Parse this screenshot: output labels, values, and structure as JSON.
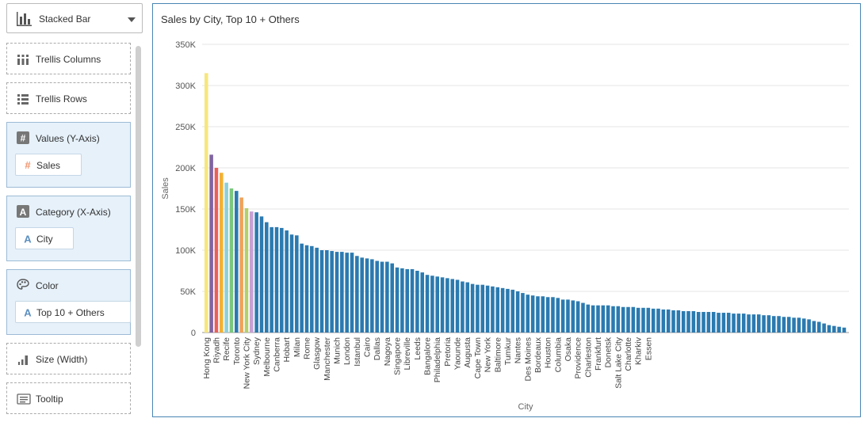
{
  "panel": {
    "chart_type": "Stacked Bar",
    "trellis_columns": "Trellis Columns",
    "trellis_rows": "Trellis Rows",
    "values_axis": {
      "label": "Values (Y-Axis)",
      "item": "Sales"
    },
    "category_axis": {
      "label": "Category (X-Axis)",
      "item": "City"
    },
    "color": {
      "label": "Color",
      "item": "Top 10 + Others"
    },
    "size": "Size (Width)",
    "tooltip": "Tooltip"
  },
  "colors": {
    "accent": "#2e7bb4",
    "panel_fill": "#e6f1fa",
    "hash_icon": "#f0936d",
    "text_icon": "#5b8fc0"
  },
  "chart_data": {
    "type": "bar",
    "title": "Sales by City, Top 10 + Others",
    "xlabel": "City",
    "ylabel": "Sales",
    "ylim": [
      0,
      350000
    ],
    "yticks": [
      0,
      50000,
      100000,
      150000,
      200000,
      250000,
      300000,
      350000
    ],
    "ytick_labels": [
      "0",
      "50K",
      "100K",
      "150K",
      "200K",
      "250K",
      "300K",
      "350K"
    ],
    "grid": true,
    "shown_labels": [
      "Hong Kong",
      "Riyadh",
      "Recife",
      "Toronto",
      "New York City",
      "Sydney",
      "Melbourne",
      "Canberra",
      "Hobart",
      "Milan",
      "Rome",
      "Glasgow",
      "Manchester",
      "Munich",
      "London",
      "Istanbul",
      "Cairo",
      "Dallas",
      "Nagoya",
      "Singapore",
      "Libreville",
      "Leeds",
      "Bangalore",
      "Philadelphia",
      "Pretoria",
      "Yaounde",
      "Augusta",
      "Cape Town",
      "New York",
      "Baltimore",
      "Tumkur",
      "Nantes",
      "Des Moines",
      "Bordeaux",
      "Houston",
      "Columbia",
      "Osaka",
      "Providence",
      "Charleston",
      "Frankfurt",
      "Donetsk",
      "Salt Lake City",
      "Charlotte",
      "Kharkiv",
      "Essen"
    ],
    "label_bar_index": [
      0,
      2,
      4,
      6,
      8,
      10,
      12,
      14,
      16,
      18,
      20,
      22,
      24,
      26,
      28,
      30,
      32,
      34,
      36,
      38,
      40,
      42,
      44,
      46,
      48,
      50,
      52,
      54,
      56,
      58,
      60,
      62,
      64,
      66,
      68,
      70,
      72,
      74,
      76,
      78,
      80,
      82,
      84,
      86,
      88
    ],
    "values": [
      315000,
      216000,
      200000,
      194000,
      182000,
      175000,
      172000,
      164000,
      151000,
      147000,
      146000,
      141000,
      134000,
      128000,
      128000,
      127000,
      124000,
      119000,
      118000,
      108000,
      106000,
      105000,
      103000,
      100000,
      100000,
      99000,
      98000,
      98000,
      97000,
      97000,
      93000,
      91000,
      90000,
      89000,
      87000,
      86000,
      86000,
      84000,
      79000,
      78000,
      77000,
      77000,
      75000,
      73000,
      70000,
      69000,
      68000,
      67000,
      66000,
      65000,
      64000,
      62000,
      61000,
      59000,
      58000,
      58000,
      57000,
      56000,
      55000,
      54000,
      53000,
      52000,
      50000,
      48000,
      46000,
      45000,
      44000,
      44000,
      43000,
      43000,
      42000,
      40000,
      40000,
      39000,
      38000,
      36000,
      34000,
      33000,
      33000,
      33000,
      33000,
      32000,
      32000,
      31000,
      31000,
      31000,
      30000,
      30000,
      30000,
      29000,
      29000,
      28000,
      28000,
      27000,
      27000,
      26000,
      26000,
      26000,
      25000,
      25000,
      25000,
      25000,
      24000,
      24000,
      24000,
      23000,
      23000,
      23000,
      22000,
      22000,
      22000,
      21000,
      21000,
      20000,
      20000,
      19000,
      19000,
      18000,
      18000,
      17000,
      16000,
      14000,
      13000,
      11000,
      9000,
      8000,
      7000,
      6000
    ],
    "bar_colors_top": [
      "#f7e67c",
      "#8064a2",
      "#e8615a",
      "#f2b134",
      "#8cd0d6",
      "#7bc77e",
      "#2b7ab0",
      "#f0a25a",
      "#b5cf6b",
      "#c6a0d4",
      "#2b7ab0"
    ],
    "others_color": "#2b7ab0"
  }
}
